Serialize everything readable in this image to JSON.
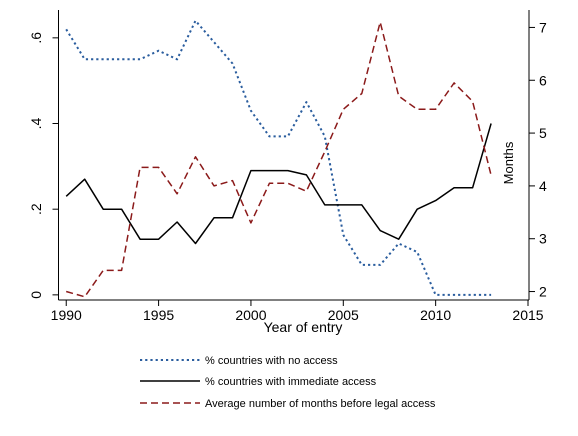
{
  "chart_data": {
    "type": "line",
    "title": "",
    "xlabel": "Year of entry",
    "ylabel": "",
    "y2label": "Months",
    "x": [
      1990,
      1991,
      1992,
      1993,
      1994,
      1995,
      1996,
      1997,
      1998,
      1999,
      2000,
      2001,
      2002,
      2003,
      2004,
      2005,
      2006,
      2007,
      2008,
      2009,
      2010,
      2011,
      2012,
      2013
    ],
    "xlim": [
      1989.5,
      2015
    ],
    "xticks": [
      1990,
      1995,
      2000,
      2005,
      2010,
      2015
    ],
    "ylim": [
      -0.012,
      0.665
    ],
    "yticks": [
      0,
      0.2,
      0.4,
      0.6
    ],
    "ytick_labels": [
      "0",
      ".2",
      ".4",
      ".6"
    ],
    "y2lim": [
      1.84,
      7.33
    ],
    "y2ticks": [
      2,
      3,
      4,
      5,
      6,
      7
    ],
    "grid": false,
    "legend_position": "bottom",
    "series": [
      {
        "name": "% countries with no access",
        "axis": "left",
        "style": "dotted",
        "color": "#2a5d9e",
        "values": [
          0.62,
          0.55,
          0.55,
          0.55,
          0.55,
          0.57,
          0.55,
          0.64,
          0.59,
          0.54,
          0.43,
          0.37,
          0.37,
          0.45,
          0.37,
          0.14,
          0.07,
          0.07,
          0.12,
          0.1,
          0.0,
          0.0,
          0.0,
          0.0
        ]
      },
      {
        "name": "% countries with immediate access",
        "axis": "left",
        "style": "solid",
        "color": "#000000",
        "values": [
          0.23,
          0.27,
          0.2,
          0.2,
          0.13,
          0.13,
          0.17,
          0.12,
          0.18,
          0.18,
          0.29,
          0.29,
          0.29,
          0.28,
          0.21,
          0.21,
          0.21,
          0.15,
          0.13,
          0.2,
          0.22,
          0.25,
          0.25,
          0.4
        ]
      },
      {
        "name": "Average number of months before legal access",
        "axis": "right",
        "style": "dashed",
        "color": "#8b1a1a",
        "values": [
          2.0,
          1.9,
          2.4,
          2.4,
          4.35,
          4.35,
          3.85,
          4.55,
          4.0,
          4.1,
          3.3,
          4.05,
          4.05,
          3.9,
          4.65,
          5.45,
          5.75,
          7.1,
          5.7,
          5.45,
          5.45,
          5.95,
          5.6,
          4.2
        ]
      }
    ]
  }
}
